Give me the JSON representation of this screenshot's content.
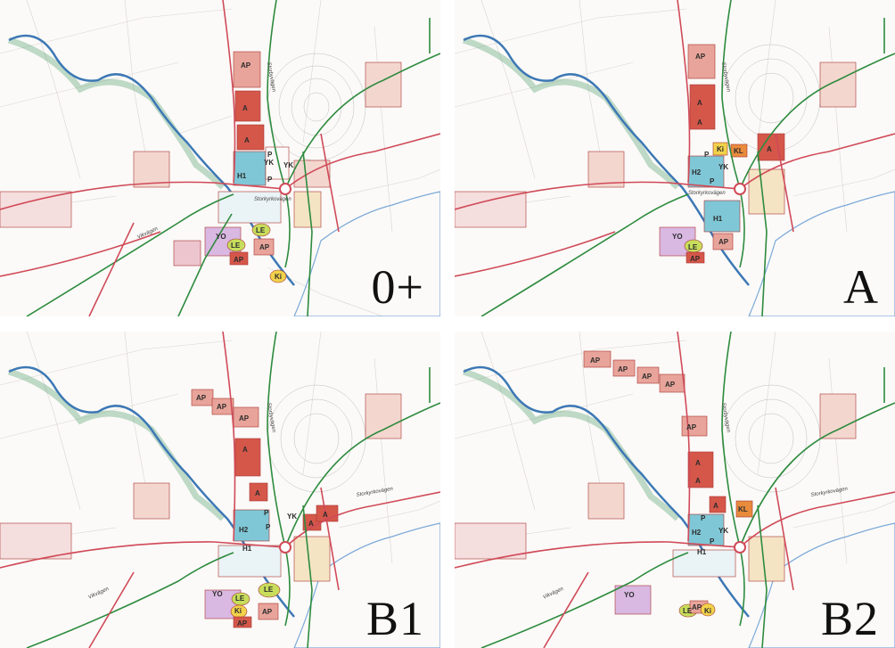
{
  "panels": [
    {
      "label": "0+",
      "zones": [
        "AP",
        "A",
        "A",
        "YK",
        "P",
        "P",
        "H1",
        "YK",
        "YO",
        "LE",
        "LE",
        "AP",
        "AP",
        "Ki"
      ],
      "roads": [
        "Storkyrkovägen",
        "Vikvägen",
        "Storbyvägen"
      ]
    },
    {
      "label": "A",
      "zones": [
        "AP",
        "A",
        "A",
        "Ki",
        "P",
        "YK",
        "KL",
        "A",
        "H2",
        "P",
        "H1",
        "YO",
        "LE",
        "AP",
        "AP"
      ],
      "roads": [
        "Storkyrkovägen",
        "Storbyvägen"
      ]
    },
    {
      "label": "B1",
      "zones": [
        "AP",
        "AP",
        "AP",
        "A",
        "A",
        "P",
        "YK",
        "A",
        "A",
        "H2",
        "P",
        "H1",
        "YO",
        "LE",
        "LE",
        "Ki",
        "AP",
        "AP"
      ],
      "roads": [
        "Storkyrkovägen",
        "Vikvägen",
        "Storbyvägen"
      ]
    },
    {
      "label": "B2",
      "zones": [
        "AP",
        "AP",
        "AP",
        "AP",
        "AP",
        "A",
        "A",
        "P",
        "A",
        "KL",
        "H2",
        "YK",
        "P",
        "H1",
        "YO",
        "LE",
        "AP",
        "Ki"
      ],
      "roads": [
        "Storkyrkovägen",
        "Vikvägen",
        "Storbyvägen"
      ]
    }
  ],
  "colors": {
    "river": "#3d78b5",
    "river_bank": "#4e9a6a",
    "road_green": "#2e8b3e",
    "road_red": "#d04a58",
    "zone_A": "#d4574a",
    "zone_AP": "#e8a49a",
    "zone_H": "#7fc7d6",
    "zone_LE": "#c7dd5b",
    "zone_Ki": "#f1d24a",
    "zone_YO": "#d9b8e2",
    "zone_KL": "#e88b3c",
    "water": "#7aa8d8"
  }
}
